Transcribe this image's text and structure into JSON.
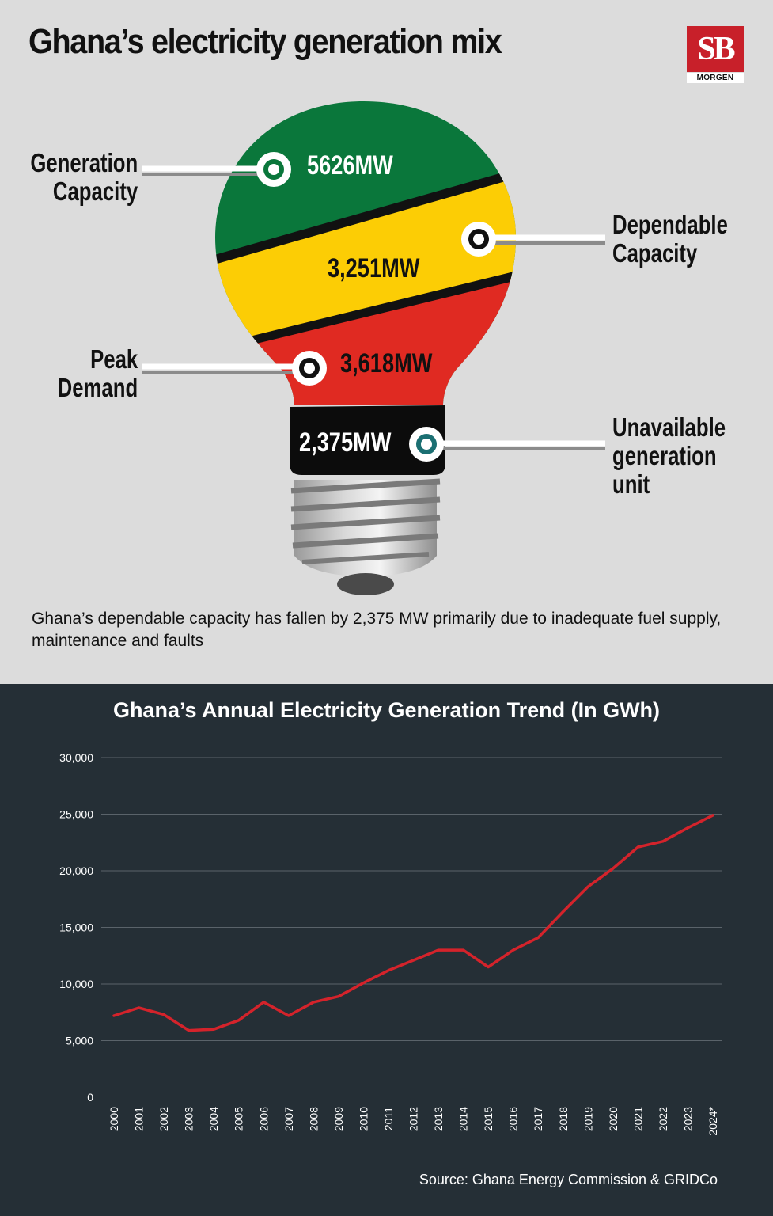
{
  "header": {
    "title": "Ghana’s electricity generation mix"
  },
  "logo": {
    "initials": "SB",
    "text": "MORGEN",
    "color": "#c8202a"
  },
  "bulb": {
    "segments": [
      {
        "label": "Generation\nCapacity",
        "value": "5626MW",
        "color": "#0a773b"
      },
      {
        "label": "Dependable\nCapacity",
        "value": "3,251MW",
        "color": "#fccd05"
      },
      {
        "label": "Peak\nDemand",
        "value": "3,618MW",
        "color": "#e02a22"
      },
      {
        "label": "Unavailable\ngeneration\nunit",
        "value": "2,375MW",
        "color": "#0c0c0c"
      }
    ]
  },
  "caption": "Ghana’s dependable capacity has fallen by 2,375 MW primarily due to inadequate fuel supply, maintenance and faults",
  "source": "Source: Ghana Energy Commission & GRIDCo",
  "colors": {
    "panel_bg": "#252f36",
    "line": "#d4232b",
    "grid": "#5a636a"
  },
  "chart_data": {
    "type": "line",
    "title": "Ghana’s Annual Electricity Generation Trend (In GWh)",
    "xlabel": "",
    "ylabel": "",
    "categories": [
      "2000",
      "2001",
      "2002",
      "2003",
      "2004",
      "2005",
      "2006",
      "2007",
      "2008",
      "2009",
      "2010",
      "2011",
      "2012",
      "2013",
      "2014",
      "2015",
      "2016",
      "2017",
      "2018",
      "2019",
      "2020",
      "2021",
      "2022",
      "2023",
      "2024*"
    ],
    "series": [
      {
        "name": "Annual Electricity Generation (GWh)",
        "values": [
          7200,
          7900,
          7300,
          5900,
          6000,
          6800,
          8400,
          7200,
          8400,
          8900,
          10100,
          11200,
          12100,
          13000,
          13000,
          11500,
          13000,
          14100,
          16400,
          18600,
          20200,
          22100,
          22600,
          23800,
          24900
        ]
      }
    ],
    "ylim": [
      0,
      30000
    ],
    "yticks": [
      0,
      5000,
      10000,
      15000,
      20000,
      25000,
      30000
    ],
    "ytick_labels": [
      "0",
      "5,000",
      "10,000",
      "15,000",
      "20,000",
      "25,000",
      "30,000"
    ],
    "grid": true
  }
}
